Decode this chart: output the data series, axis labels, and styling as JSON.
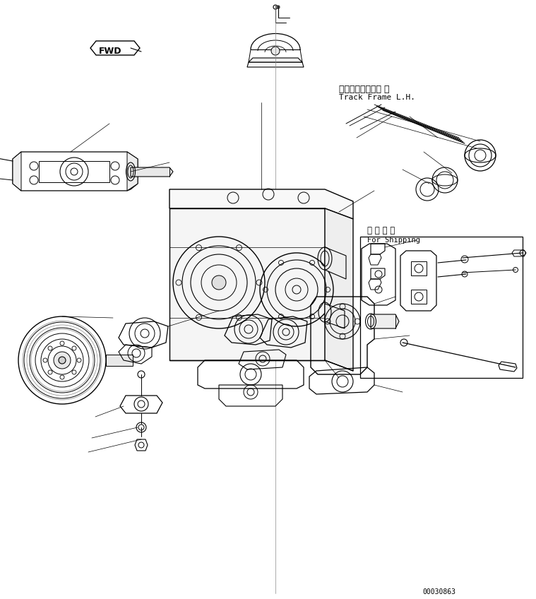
{
  "background_color": "#ffffff",
  "line_color": "#000000",
  "title_jp": "トラックフレーム 左",
  "title_en": "Track Frame L.H.",
  "shipping_jp": "連 携 部 品",
  "shipping_en": "For Shipping",
  "fwd_label": "FWD",
  "part_number": "00030863",
  "fig_size": [
    7.59,
    8.48
  ],
  "dpi": 100
}
